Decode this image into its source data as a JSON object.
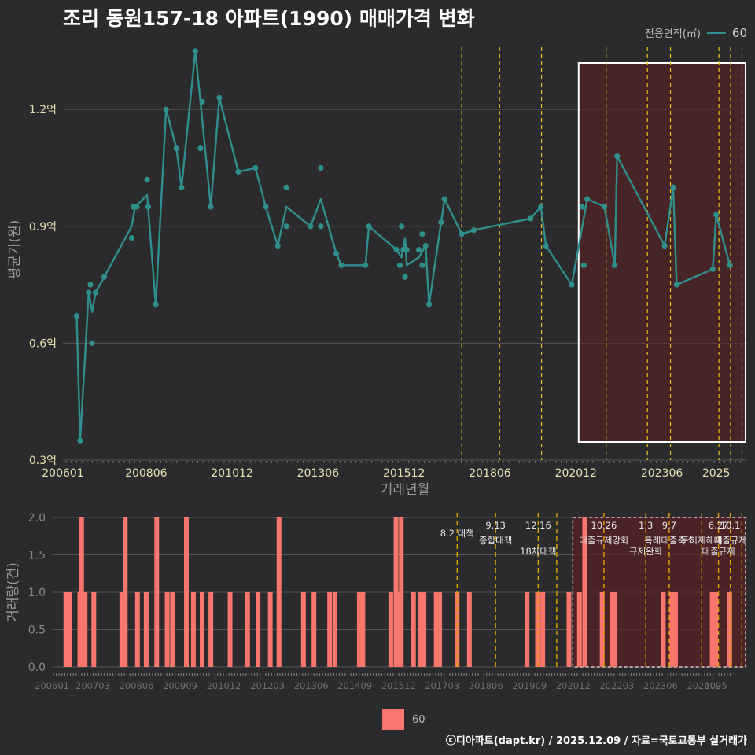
{
  "title": "조리 동원157-18 아파트(1990) 매매가격 변화",
  "legend": {
    "title": "전용면적(㎡)",
    "series": "60"
  },
  "footer": "ⓒ디아파트(dapt.kr) / 2025.12.09 / 자료=국토교통부 실거래가",
  "colors": {
    "line": "#2f8f8c",
    "bar": "#f8766d",
    "policy": "#e6c21a",
    "highlight": "#5a1f22"
  },
  "chart_data": [
    {
      "type": "line",
      "title": "",
      "xlabel": "거래년월",
      "ylabel": "평균가(원)",
      "x_range": [
        2006.0,
        2025.9
      ],
      "ylim": [
        0.3,
        1.38
      ],
      "y_ticks": [
        0.3,
        0.6,
        0.9,
        1.2
      ],
      "y_tick_labels": [
        "0.3억",
        "0.6억",
        "0.9억",
        "1.2억"
      ],
      "x_ticks": [
        2006.0,
        2008.42,
        2010.92,
        2013.42,
        2015.92,
        2018.42,
        2020.92,
        2023.42,
        2025.0
      ],
      "x_tick_labels": [
        "200601",
        "200806",
        "201012",
        "201306",
        "201512",
        "201806",
        "202012",
        "202306",
        "2025"
      ],
      "highlight_range": [
        2021.0,
        2025.9
      ],
      "policy_lines": [
        2017.6,
        2018.7,
        2019.92,
        2021.8,
        2023.0,
        2023.67,
        2025.08,
        2025.42,
        2025.75
      ],
      "series": [
        {
          "name": "60",
          "line": [
            [
              2006.4,
              0.67
            ],
            [
              2006.5,
              0.35
            ],
            [
              2006.75,
              0.73
            ],
            [
              2006.85,
              0.68
            ],
            [
              2006.95,
              0.73
            ],
            [
              2007.2,
              0.77
            ],
            [
              2008.0,
              0.9
            ],
            [
              2008.1,
              0.95
            ],
            [
              2008.45,
              0.98
            ],
            [
              2008.7,
              0.7
            ],
            [
              2009.0,
              1.2
            ],
            [
              2009.3,
              1.1
            ],
            [
              2009.45,
              1.0
            ],
            [
              2009.85,
              1.35
            ],
            [
              2010.0,
              1.22
            ],
            [
              2010.3,
              0.95
            ],
            [
              2010.55,
              1.23
            ],
            [
              2011.1,
              1.04
            ],
            [
              2011.6,
              1.05
            ],
            [
              2011.9,
              0.95
            ],
            [
              2012.25,
              0.85
            ],
            [
              2012.5,
              0.95
            ],
            [
              2013.2,
              0.9
            ],
            [
              2013.5,
              0.97
            ],
            [
              2013.95,
              0.83
            ],
            [
              2014.1,
              0.8
            ],
            [
              2014.8,
              0.8
            ],
            [
              2014.9,
              0.9
            ],
            [
              2015.7,
              0.84
            ],
            [
              2015.85,
              0.82
            ],
            [
              2015.95,
              0.87
            ],
            [
              2016.0,
              0.8
            ],
            [
              2016.35,
              0.82
            ],
            [
              2016.55,
              0.85
            ],
            [
              2016.65,
              0.7
            ],
            [
              2017.0,
              0.91
            ],
            [
              2017.1,
              0.97
            ],
            [
              2017.6,
              0.88
            ],
            [
              2017.95,
              0.89
            ],
            [
              2019.6,
              0.92
            ],
            [
              2019.9,
              0.95
            ],
            [
              2020.05,
              0.85
            ],
            [
              2020.8,
              0.75
            ],
            [
              2021.25,
              0.97
            ],
            [
              2021.75,
              0.95
            ],
            [
              2022.05,
              0.8
            ],
            [
              2022.12,
              1.08
            ],
            [
              2023.5,
              0.85
            ],
            [
              2023.75,
              1.0
            ],
            [
              2023.85,
              0.75
            ],
            [
              2024.9,
              0.79
            ],
            [
              2025.0,
              0.93
            ],
            [
              2025.4,
              0.8
            ]
          ],
          "points": [
            [
              2006.4,
              0.67
            ],
            [
              2006.5,
              0.35
            ],
            [
              2006.75,
              0.73
            ],
            [
              2006.8,
              0.75
            ],
            [
              2006.85,
              0.6
            ],
            [
              2006.95,
              0.73
            ],
            [
              2007.2,
              0.77
            ],
            [
              2008.0,
              0.87
            ],
            [
              2008.05,
              0.95
            ],
            [
              2008.15,
              0.95
            ],
            [
              2008.45,
              1.02
            ],
            [
              2008.48,
              0.95
            ],
            [
              2008.7,
              0.7
            ],
            [
              2009.0,
              1.2
            ],
            [
              2009.3,
              1.1
            ],
            [
              2009.45,
              1.0
            ],
            [
              2009.85,
              1.35
            ],
            [
              2010.0,
              1.1
            ],
            [
              2010.05,
              1.22
            ],
            [
              2010.3,
              0.95
            ],
            [
              2010.55,
              1.23
            ],
            [
              2011.1,
              1.04
            ],
            [
              2011.6,
              1.05
            ],
            [
              2011.9,
              0.95
            ],
            [
              2012.25,
              0.85
            ],
            [
              2012.5,
              1.0
            ],
            [
              2012.5,
              0.9
            ],
            [
              2013.2,
              0.9
            ],
            [
              2013.5,
              0.9
            ],
            [
              2013.5,
              1.05
            ],
            [
              2013.95,
              0.83
            ],
            [
              2014.1,
              0.8
            ],
            [
              2014.8,
              0.8
            ],
            [
              2014.9,
              0.9
            ],
            [
              2015.7,
              0.84
            ],
            [
              2015.8,
              0.8
            ],
            [
              2015.85,
              0.9
            ],
            [
              2015.9,
              0.84
            ],
            [
              2015.95,
              0.77
            ],
            [
              2016.0,
              0.84
            ],
            [
              2016.35,
              0.84
            ],
            [
              2016.45,
              0.8
            ],
            [
              2016.45,
              0.88
            ],
            [
              2016.55,
              0.85
            ],
            [
              2016.65,
              0.7
            ],
            [
              2017.0,
              0.91
            ],
            [
              2017.1,
              0.97
            ],
            [
              2017.6,
              0.88
            ],
            [
              2017.95,
              0.89
            ],
            [
              2019.6,
              0.92
            ],
            [
              2019.9,
              0.95
            ],
            [
              2020.05,
              0.85
            ],
            [
              2020.8,
              0.75
            ],
            [
              2021.1,
              0.95
            ],
            [
              2021.15,
              0.8
            ],
            [
              2021.25,
              0.97
            ],
            [
              2021.75,
              0.95
            ],
            [
              2022.05,
              0.8
            ],
            [
              2022.12,
              1.08
            ],
            [
              2023.5,
              0.85
            ],
            [
              2023.75,
              1.0
            ],
            [
              2023.85,
              0.75
            ],
            [
              2024.9,
              0.79
            ],
            [
              2025.0,
              0.93
            ],
            [
              2025.4,
              0.8
            ]
          ]
        }
      ]
    },
    {
      "type": "bar",
      "title": "",
      "xlabel": "",
      "ylabel": "거래량(건)",
      "x_range": [
        2006.0,
        2025.9
      ],
      "ylim": [
        0,
        2.0
      ],
      "y_ticks": [
        0.0,
        0.5,
        1.0,
        1.5,
        2.0
      ],
      "y_tick_labels": [
        "0.0",
        "0.5",
        "1.0",
        "1.5",
        "2.0"
      ],
      "x_ticks": [
        2006.0,
        2007.17,
        2008.42,
        2009.67,
        2010.92,
        2012.17,
        2013.42,
        2014.67,
        2015.92,
        2017.17,
        2018.42,
        2019.67,
        2020.92,
        2022.17,
        2023.42,
        2024.67,
        2025.0
      ],
      "x_tick_labels": [
        "200601",
        "200703",
        "200806",
        "200909",
        "201012",
        "201203",
        "201306",
        "201409",
        "201512",
        "201703",
        "201806",
        "201909",
        "202012",
        "202203",
        "202306",
        "202409",
        "2025"
      ],
      "highlight_range": [
        2021.0,
        2025.9
      ],
      "series": [
        {
          "name": "60",
          "x": [
            2006.4,
            2006.5,
            2006.8,
            2006.85,
            2006.95,
            2007.2,
            2008.0,
            2008.1,
            2008.45,
            2008.7,
            2009.0,
            2009.3,
            2009.45,
            2009.85,
            2010.05,
            2010.3,
            2010.55,
            2011.1,
            2011.6,
            2011.9,
            2012.25,
            2012.5,
            2013.2,
            2013.5,
            2013.95,
            2014.1,
            2014.8,
            2014.9,
            2015.7,
            2015.85,
            2015.95,
            2016.0,
            2016.35,
            2016.55,
            2016.65,
            2017.0,
            2017.1,
            2017.6,
            2017.95,
            2019.6,
            2019.9,
            2020.05,
            2020.8,
            2021.1,
            2021.25,
            2021.75,
            2022.05,
            2022.12,
            2023.5,
            2023.75,
            2023.85,
            2024.9,
            2025.0,
            2025.4
          ],
          "values": [
            1,
            1,
            1,
            2,
            1,
            1,
            1,
            2,
            1,
            1,
            2,
            1,
            1,
            2,
            1,
            1,
            1,
            1,
            1,
            1,
            1,
            2,
            1,
            1,
            1,
            1,
            1,
            1,
            1,
            2,
            1,
            2,
            1,
            1,
            1,
            1,
            1,
            1,
            1,
            1,
            1,
            1,
            1,
            1,
            2,
            1,
            1,
            1,
            1,
            1,
            1,
            1,
            1,
            1
          ]
        }
      ],
      "policy_lines": [
        {
          "x": 2017.6,
          "date": "8.2 대책",
          "label": ""
        },
        {
          "x": 2018.7,
          "date": "9.13",
          "label": "종합대책"
        },
        {
          "x": 2019.92,
          "date": "12.16",
          "label": "18차대책"
        },
        {
          "x": 2020.45,
          "date": "",
          "label": ""
        },
        {
          "x": 2021.8,
          "date": "10.26",
          "label": "대출규제강화"
        },
        {
          "x": 2023.0,
          "date": "1.3",
          "label": "규제완화"
        },
        {
          "x": 2023.67,
          "date": "9.7",
          "label": "특례대출축소"
        },
        {
          "x": 2024.6,
          "date": "",
          "label": "토허제해제"
        },
        {
          "x": 2025.08,
          "date": "6.27",
          "label": "대출규제"
        },
        {
          "x": 2025.42,
          "date": "10.1",
          "label": "대출규제"
        },
        {
          "x": 2025.75,
          "date": "",
          "label": ""
        }
      ]
    }
  ]
}
